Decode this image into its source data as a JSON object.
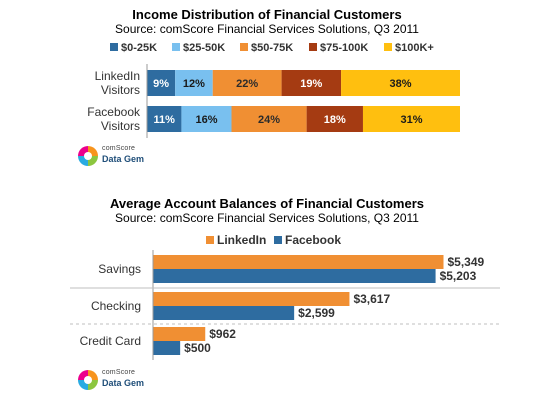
{
  "chart_data": [
    {
      "type": "bar",
      "orientation": "horizontal",
      "stacked": true,
      "percent_stacked": true,
      "title": "Income Distribution  of Financial Customers",
      "subtitle": "Source: comScore Financial Services Solutions, Q3 2011",
      "categories": [
        "LinkedIn Visitors",
        "Facebook Visitors"
      ],
      "category_lines": [
        [
          "LinkedIn",
          "Visitors"
        ],
        [
          "Facebook",
          "Visitors"
        ]
      ],
      "series": [
        {
          "name": "$0-25K",
          "color": "#2e6ca0",
          "values": [
            9,
            11
          ],
          "labels": [
            "9%",
            "11%"
          ]
        },
        {
          "name": "$25-50K",
          "color": "#79c0ef",
          "values": [
            12,
            16
          ],
          "labels": [
            "12%",
            "16%"
          ]
        },
        {
          "name": "$50-75K",
          "color": "#f08f33",
          "values": [
            22,
            24
          ],
          "labels": [
            "22%",
            "24%"
          ]
        },
        {
          "name": "$75-100K",
          "color": "#a53b12",
          "values": [
            19,
            18
          ],
          "labels": [
            "19%",
            "18%"
          ]
        },
        {
          "name": "$100K+",
          "color": "#ffbf0f",
          "values": [
            38,
            31
          ],
          "labels": [
            "38%",
            "31%"
          ]
        }
      ],
      "legend": "top",
      "grid": false,
      "logo": {
        "brand": "comScore",
        "product": "Data Gem"
      }
    },
    {
      "type": "bar",
      "orientation": "horizontal",
      "title": "Average Account Balances  of Financial Customers",
      "subtitle": "Source: comScore Financial Services Solutions, Q3 2011",
      "categories": [
        "Savings",
        "Checking",
        "Credit Card"
      ],
      "series": [
        {
          "name": "LinkedIn",
          "color": "#f08f33",
          "values": [
            5349,
            3617,
            962
          ],
          "labels": [
            "$5,349",
            "$3,617",
            "$962"
          ]
        },
        {
          "name": "Facebook",
          "color": "#2e6ca0",
          "values": [
            5203,
            2599,
            500
          ],
          "labels": [
            "$5,203",
            "$2,599",
            "$500"
          ]
        }
      ],
      "xlim": [
        0,
        5800
      ],
      "legend": "top",
      "grid": false,
      "logo": {
        "brand": "comScore",
        "product": "Data Gem"
      }
    }
  ]
}
